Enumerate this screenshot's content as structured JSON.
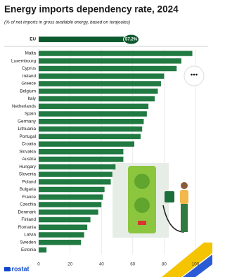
{
  "chart_data": {
    "type": "bar",
    "orientation": "horizontal",
    "title": "Energy imports dependency rate, 2024",
    "subtitle": "(% of net imports in gross available energy, based on terajoules)",
    "highlight": {
      "category": "EU",
      "value": 57.2,
      "value_label": "57.2%",
      "color": "#0e5a2f"
    },
    "categories": [
      "Malta",
      "Luxembourg",
      "Cyprus",
      "Ireland",
      "Greece",
      "Belgium",
      "Italy",
      "Netherlands",
      "Spain",
      "Germany",
      "Lithuania",
      "Portugal",
      "Croatia",
      "Slovakia",
      "Austria",
      "Hungary",
      "Slovenia",
      "Poland",
      "Bulgaria",
      "France",
      "Czechia",
      "Denmark",
      "Finland",
      "Romania",
      "Latvia",
      "Sweden",
      "Estonia"
    ],
    "values": [
      98,
      91,
      88,
      80,
      78,
      76,
      74,
      70,
      69,
      67,
      66,
      65,
      61,
      54,
      54,
      49,
      47,
      46,
      42,
      41,
      40,
      38,
      33,
      31,
      29,
      27,
      5
    ],
    "color": "#217a42",
    "xlim": [
      0,
      100
    ],
    "xticks": [
      0,
      20,
      40,
      60,
      80,
      100
    ],
    "grid": true
  },
  "footer": {
    "brand": "eurostat"
  }
}
